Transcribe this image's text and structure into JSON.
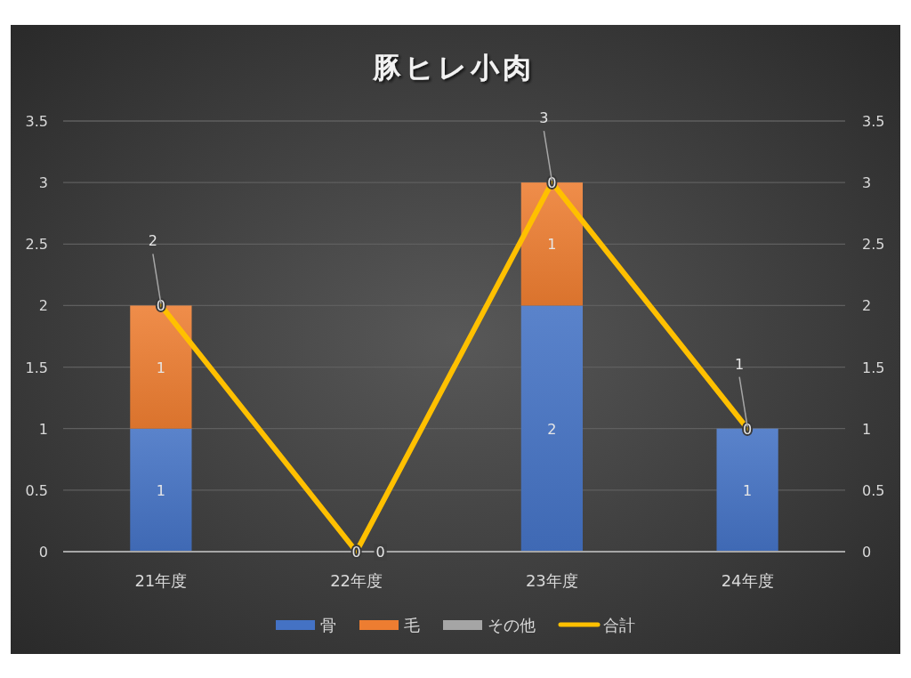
{
  "chart_data": {
    "type": "bar",
    "title": "豚ヒレ小肉",
    "categories": [
      "21年度",
      "22年度",
      "23年度",
      "24年度"
    ],
    "stacked": true,
    "series": [
      {
        "name": "骨",
        "color": "#4472c4",
        "values": [
          1,
          0,
          2,
          1
        ],
        "value_labels": [
          "1",
          null,
          "2",
          "1"
        ]
      },
      {
        "name": "毛",
        "color": "#ed7d31",
        "values": [
          1,
          0,
          1,
          0
        ],
        "value_labels": [
          "1",
          null,
          "1",
          null
        ]
      },
      {
        "name": "その他",
        "color": "#a5a5a5",
        "values": [
          0,
          0,
          0,
          0
        ],
        "value_labels": [
          "0",
          "0",
          "0",
          "0"
        ]
      },
      {
        "name": "合計",
        "type": "line",
        "axis": "y2",
        "color": "#ffc000",
        "values": [
          2,
          0,
          3,
          1
        ],
        "value_labels": [
          "2",
          "0",
          "3",
          "1"
        ]
      }
    ],
    "ylim": [
      0,
      3.5
    ],
    "yticks": [
      0,
      0.5,
      1,
      1.5,
      2,
      2.5,
      3,
      3.5
    ],
    "y2lim": [
      0,
      3.5
    ],
    "y2ticks": [
      0,
      0.5,
      1,
      1.5,
      2,
      2.5,
      3,
      3.5
    ],
    "grid": "y",
    "legend": "bottom"
  }
}
